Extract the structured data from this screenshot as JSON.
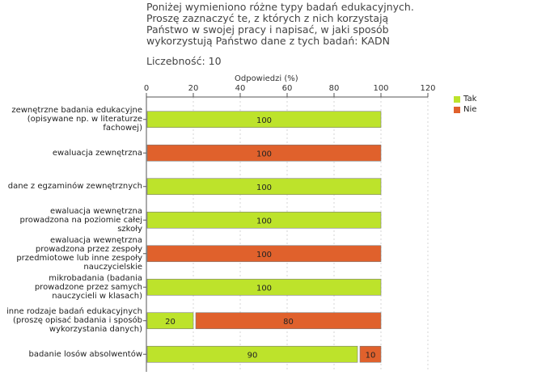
{
  "header": {
    "title": "Poniżej wymieniono różne typy badań edukacyjnych.\nProszę zaznaczyć te, z których z nich korzystają\nPaństwo w swojej pracy i napisać, w jaki sposób\nwykorzystują Państwo dane z tych badań:  KADN",
    "count": "Liczebność: 10"
  },
  "chart_data": {
    "type": "bar",
    "orientation": "horizontal",
    "stacked": true,
    "xlabel": "Odpowiedzi (%)",
    "xlim": [
      0,
      120
    ],
    "xticks": [
      0,
      20,
      40,
      60,
      80,
      100,
      120
    ],
    "grid": true,
    "legend_position": "top-right",
    "categories": [
      "zewnętrzne badania edukacyjne (opisywane np. w literaturze fachowej)",
      "ewaluacja zewnętrzna",
      "dane z egzaminów zewnętrznych",
      "ewaluacja wewnętrzna prowadzona na poziomie całej szkoły",
      "ewaluacja wewnętrzna prowadzona przez zespoły przedmiotowe lub inne zespoły nauczycielskie",
      "mikrobadania (badania prowadzone przez samych nauczycieli w klasach)",
      "inne rodzaje badań edukacyjnych (proszę opisać badania i sposób wykorzystania danych)",
      "badanie losów absolwentów"
    ],
    "series": [
      {
        "name": "Tak",
        "color": "#bde32b",
        "values": [
          100,
          0,
          100,
          100,
          0,
          100,
          20,
          90
        ]
      },
      {
        "name": "Nie",
        "color": "#e0612c",
        "values": [
          0,
          100,
          0,
          0,
          100,
          0,
          80,
          10
        ]
      }
    ]
  }
}
